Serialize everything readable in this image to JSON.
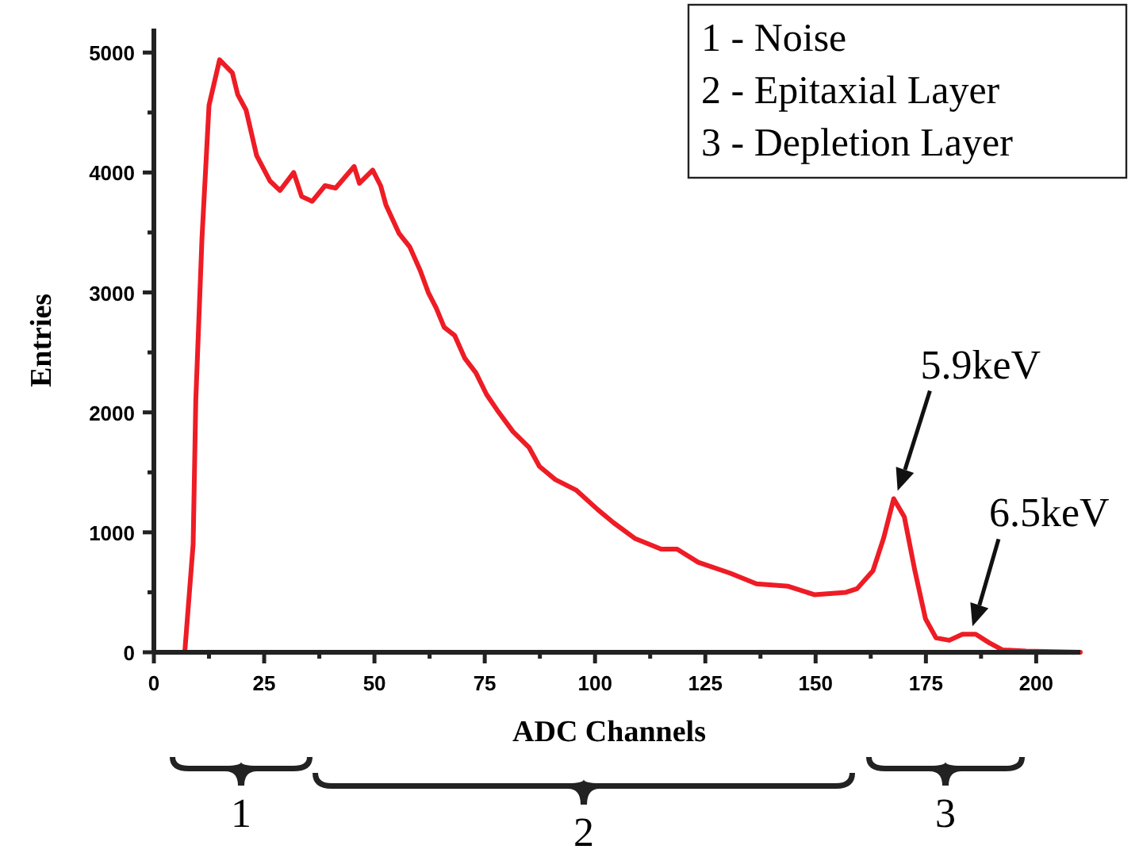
{
  "chart_data": {
    "type": "line",
    "xlabel": "ADC Channels",
    "ylabel": "Entries",
    "x": [
      0,
      7,
      8.9,
      9.5,
      10.9,
      12.5,
      14.9,
      17.8,
      19,
      20.9,
      23.3,
      26.3,
      28.6,
      31.7,
      33.5,
      35.9,
      38.8,
      41.2,
      45.4,
      46.6,
      49.6,
      51.4,
      52.6,
      55.6,
      58,
      60.4,
      62.2,
      64,
      65.8,
      68.2,
      70.5,
      73,
      75.4,
      77.8,
      81.4,
      85,
      87.4,
      91,
      95.8,
      100.6,
      104.2,
      109,
      115,
      118.6,
      123.4,
      130.6,
      136.6,
      143.8,
      149.7,
      156.9,
      159.4,
      163,
      165.4,
      167.7,
      170.1,
      172.5,
      174.9,
      177.3,
      180.3,
      183.3,
      186.3,
      189.3,
      192.3,
      197.7,
      210
    ],
    "series": [
      {
        "color": "#ee1c25",
        "values": [
          0,
          0,
          900,
          2100,
          3450,
          4560,
          4940,
          4830,
          4650,
          4520,
          4140,
          3930,
          3850,
          4000,
          3800,
          3760,
          3890,
          3870,
          4050,
          3910,
          4020,
          3890,
          3730,
          3490,
          3380,
          3180,
          3000,
          2870,
          2710,
          2640,
          2450,
          2330,
          2150,
          2020,
          1840,
          1710,
          1550,
          1440,
          1350,
          1190,
          1080,
          950,
          860,
          860,
          750,
          660,
          570,
          550,
          480,
          500,
          530,
          680,
          950,
          1280,
          1130,
          680,
          280,
          120,
          100,
          150,
          150,
          80,
          20,
          10,
          0
        ]
      }
    ],
    "xlim": [
      0,
      210
    ],
    "xticks": [
      0,
      {
        "value": 12.5,
        "label": null
      },
      25,
      {
        "value": 37.5,
        "label": null
      },
      50,
      {
        "value": 62.5,
        "label": null
      },
      75,
      {
        "value": 87.5,
        "label": null
      },
      100,
      {
        "value": 112.5,
        "label": null
      },
      125,
      {
        "value": 137.5,
        "label": null
      },
      150,
      {
        "value": 162.5,
        "label": null
      },
      175,
      {
        "value": 187.5,
        "label": null
      },
      200
    ],
    "ylim": [
      0,
      5200
    ],
    "yticks": [
      0,
      {
        "value": 500,
        "label": null
      },
      1000,
      {
        "value": 1500,
        "label": null
      },
      2000,
      {
        "value": 2500,
        "label": null
      },
      3000,
      {
        "value": 3500,
        "label": null
      },
      4000,
      {
        "value": 4500,
        "label": null
      },
      5000
    ],
    "grid": false,
    "marker": "none",
    "line_style": "solid",
    "annotations": [
      "1 - Noise",
      "2 - Epitaxial Layer",
      "3 - Depletion Layer",
      {
        "text": "5.9keV",
        "x": 168,
        "y": 1280
      },
      {
        "text": "6.5keV",
        "x": 185,
        "y": 150
      },
      "1",
      "2",
      "3"
    ]
  }
}
